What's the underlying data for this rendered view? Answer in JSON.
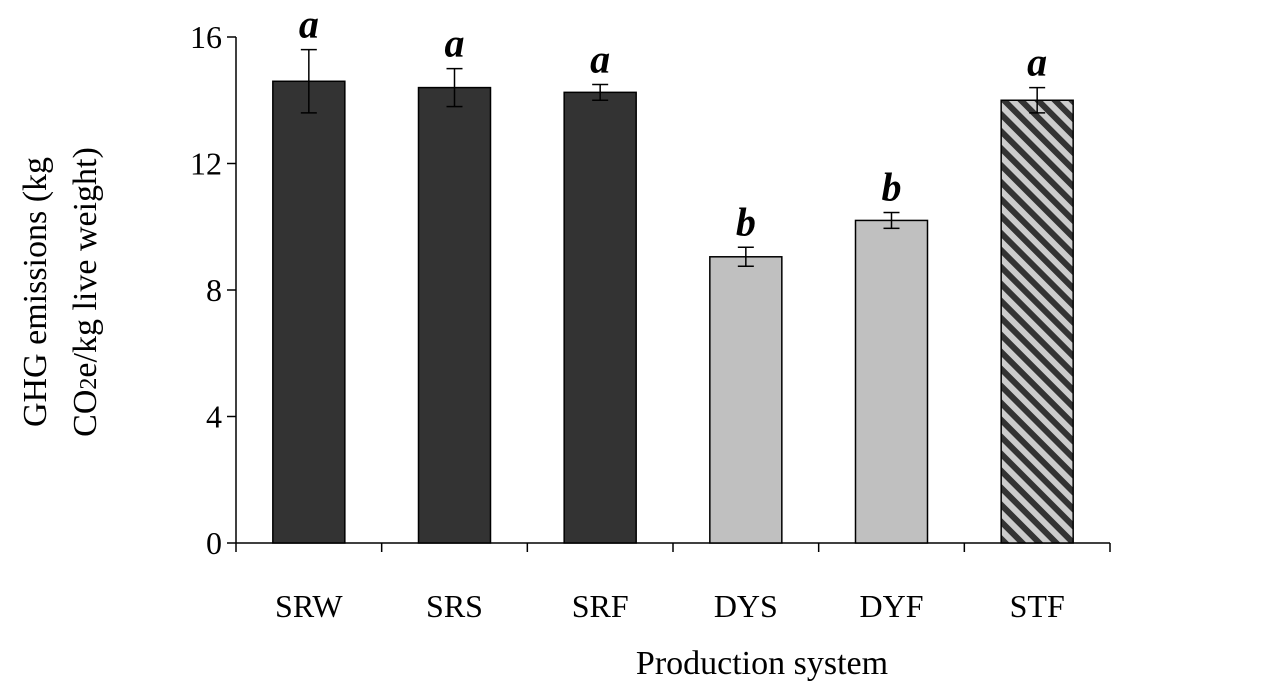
{
  "chart_data": {
    "type": "bar",
    "title": "",
    "xlabel": "Production system",
    "ylabel_line1": "GHG emissions (kg",
    "ylabel_line2_part1": "CO",
    "ylabel_line2_sub": "2",
    "ylabel_line2_part2": "e/kg live weight)",
    "ylim": [
      0,
      16
    ],
    "yticks": [
      "0",
      "4",
      "8",
      "12",
      "16"
    ],
    "grid": false,
    "legend": "none",
    "categories": [
      "SRW",
      "SRS",
      "SRF",
      "DYS",
      "DYF",
      "STF"
    ],
    "values": [
      14.6,
      14.4,
      14.25,
      9.05,
      10.2,
      14.0
    ],
    "error": [
      1.0,
      0.6,
      0.25,
      0.3,
      0.25,
      0.4
    ],
    "significance": [
      "a",
      "a",
      "a",
      "b",
      "b",
      "a"
    ],
    "bar_styles": [
      "dark",
      "dark",
      "dark",
      "light",
      "light",
      "hatched"
    ]
  },
  "colors": {
    "dark": "#333333",
    "light": "#c0c0c0",
    "hatch_a": "#333333",
    "hatch_b": "#cccccc",
    "axis": "#000000"
  }
}
